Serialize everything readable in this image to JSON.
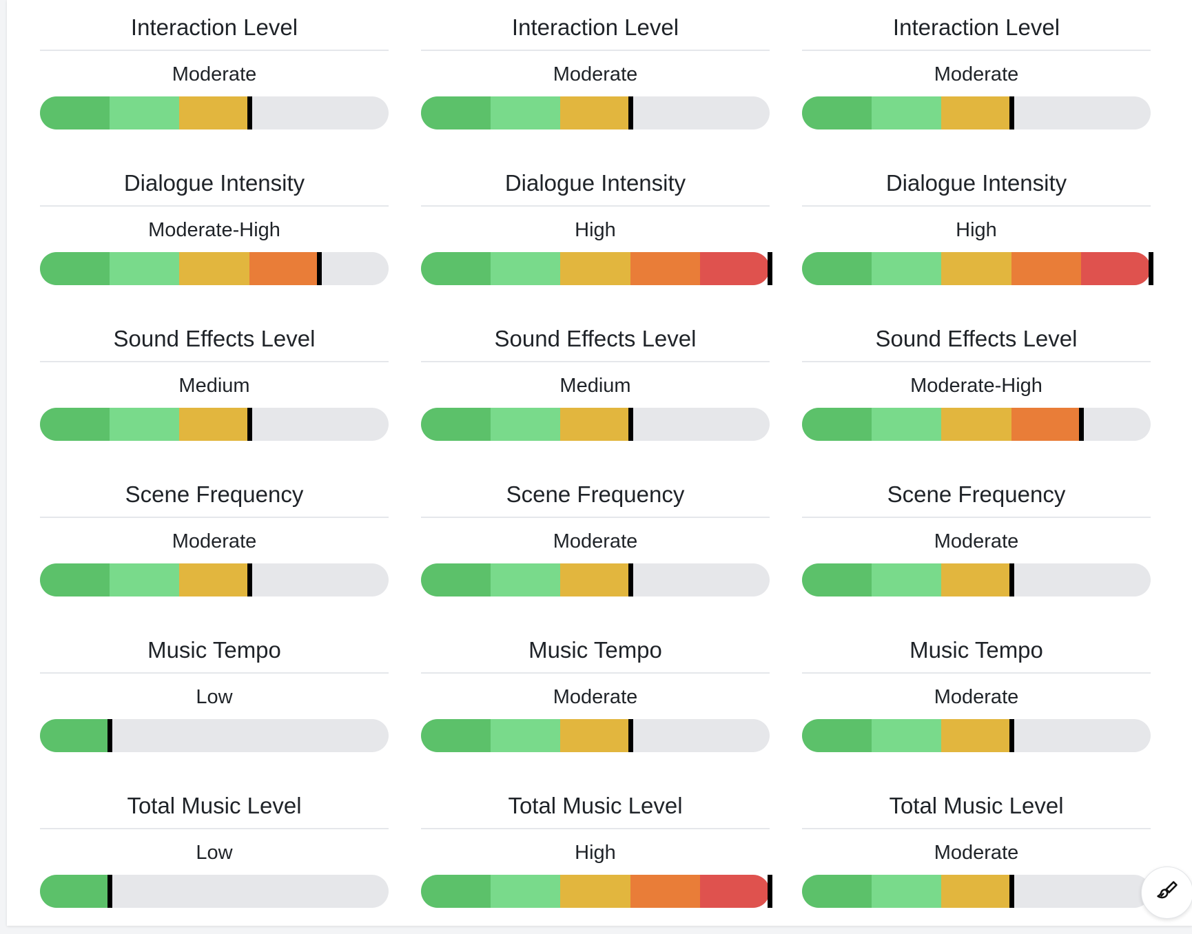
{
  "scale": {
    "steps": 5,
    "colors": [
      "#5cc16a",
      "#79da8b",
      "#e2b63e",
      "#e97d38",
      "#df524e"
    ],
    "track_color": "#e6e7ea",
    "marker_color": "#000000"
  },
  "columns": [
    {
      "metrics": [
        {
          "title": "Interaction Level",
          "value": "Moderate",
          "level": 3
        },
        {
          "title": "Dialogue Intensity",
          "value": "Moderate-High",
          "level": 4
        },
        {
          "title": "Sound Effects Level",
          "value": "Medium",
          "level": 3
        },
        {
          "title": "Scene Frequency",
          "value": "Moderate",
          "level": 3
        },
        {
          "title": "Music Tempo",
          "value": "Low",
          "level": 1
        },
        {
          "title": "Total Music Level",
          "value": "Low",
          "level": 1
        }
      ]
    },
    {
      "metrics": [
        {
          "title": "Interaction Level",
          "value": "Moderate",
          "level": 3
        },
        {
          "title": "Dialogue Intensity",
          "value": "High",
          "level": 5
        },
        {
          "title": "Sound Effects Level",
          "value": "Medium",
          "level": 3
        },
        {
          "title": "Scene Frequency",
          "value": "Moderate",
          "level": 3
        },
        {
          "title": "Music Tempo",
          "value": "Moderate",
          "level": 3
        },
        {
          "title": "Total Music Level",
          "value": "High",
          "level": 5
        }
      ]
    },
    {
      "metrics": [
        {
          "title": "Interaction Level",
          "value": "Moderate",
          "level": 3
        },
        {
          "title": "Dialogue Intensity",
          "value": "High",
          "level": 5
        },
        {
          "title": "Sound Effects Level",
          "value": "Moderate-High",
          "level": 4
        },
        {
          "title": "Scene Frequency",
          "value": "Moderate",
          "level": 3
        },
        {
          "title": "Music Tempo",
          "value": "Moderate",
          "level": 3
        },
        {
          "title": "Total Music Level",
          "value": "Moderate",
          "level": 3
        }
      ]
    }
  ],
  "fab": {
    "icon": "paintbrush-icon"
  }
}
